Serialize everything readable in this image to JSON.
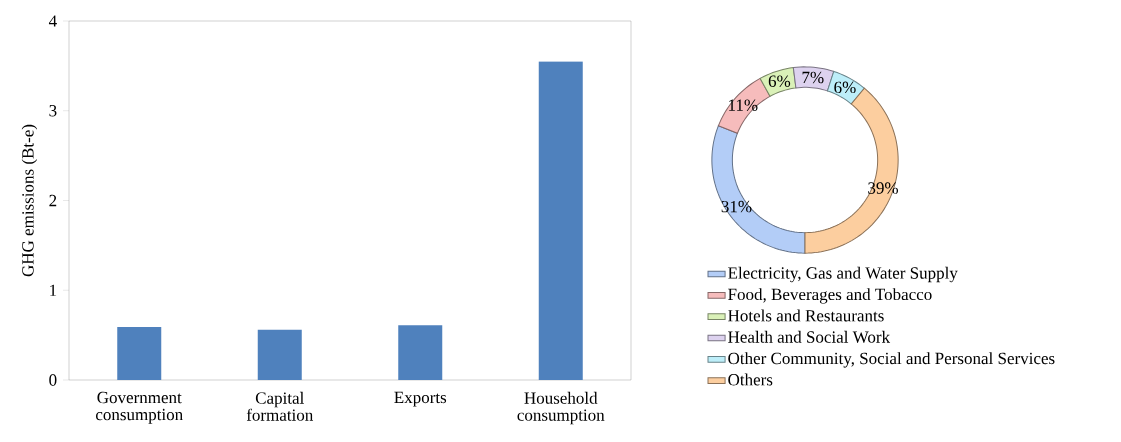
{
  "chart_data": [
    {
      "type": "bar",
      "ylabel": "GHG emissions (Bt-e)",
      "categories": [
        "Government consumption",
        "Capital formation",
        "Exports",
        "Household consumption"
      ],
      "values": [
        0.59,
        0.56,
        0.61,
        3.55
      ],
      "color": "#4f81bd",
      "ylim": [
        0,
        4
      ],
      "yticks": [
        0,
        1,
        2,
        3,
        4
      ]
    },
    {
      "type": "donut",
      "categories": [
        "Electricity, Gas and Water Supply",
        "Food, Beverages and Tobacco",
        "Hotels and Restaurants",
        "Health and Social Work",
        "Other Community, Social and Personal Services",
        "Others"
      ],
      "values": [
        31,
        11,
        6,
        7,
        6,
        39
      ],
      "value_labels": [
        "31%",
        "11%",
        "6%",
        "7%",
        "6%",
        "39%"
      ],
      "colors": [
        "#b3cdf7",
        "#f6bcbc",
        "#daf1b8",
        "#ddd2ef",
        "#bdeef9",
        "#fcce9f"
      ],
      "legend": "bottom"
    }
  ]
}
